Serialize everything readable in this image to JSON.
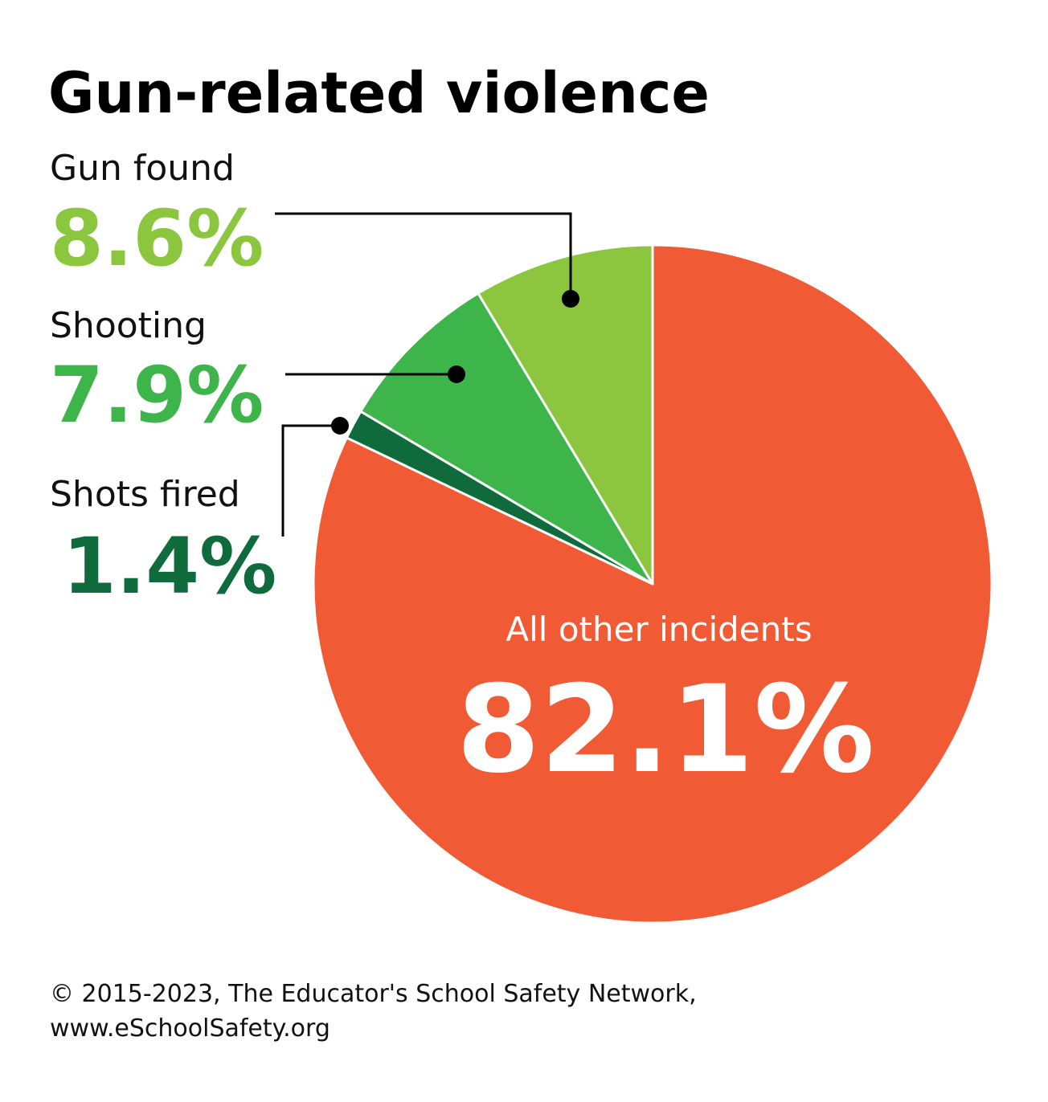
{
  "chart_data": {
    "type": "pie",
    "title": "Gun-related violence",
    "categories": [
      "All other incidents",
      "Shots fired",
      "Shooting",
      "Gun found"
    ],
    "values": [
      82.1,
      1.4,
      7.9,
      8.6
    ],
    "value_labels": [
      "82.1%",
      "1.4%",
      "7.9%",
      "8.6%"
    ],
    "colors": [
      "#f05a35",
      "#0f6b3b",
      "#3db54a",
      "#8cc63f"
    ],
    "footer": [
      "© 2015-2023, The Educator's School Safety Network,",
      "www.eSchoolSafety.org"
    ]
  }
}
